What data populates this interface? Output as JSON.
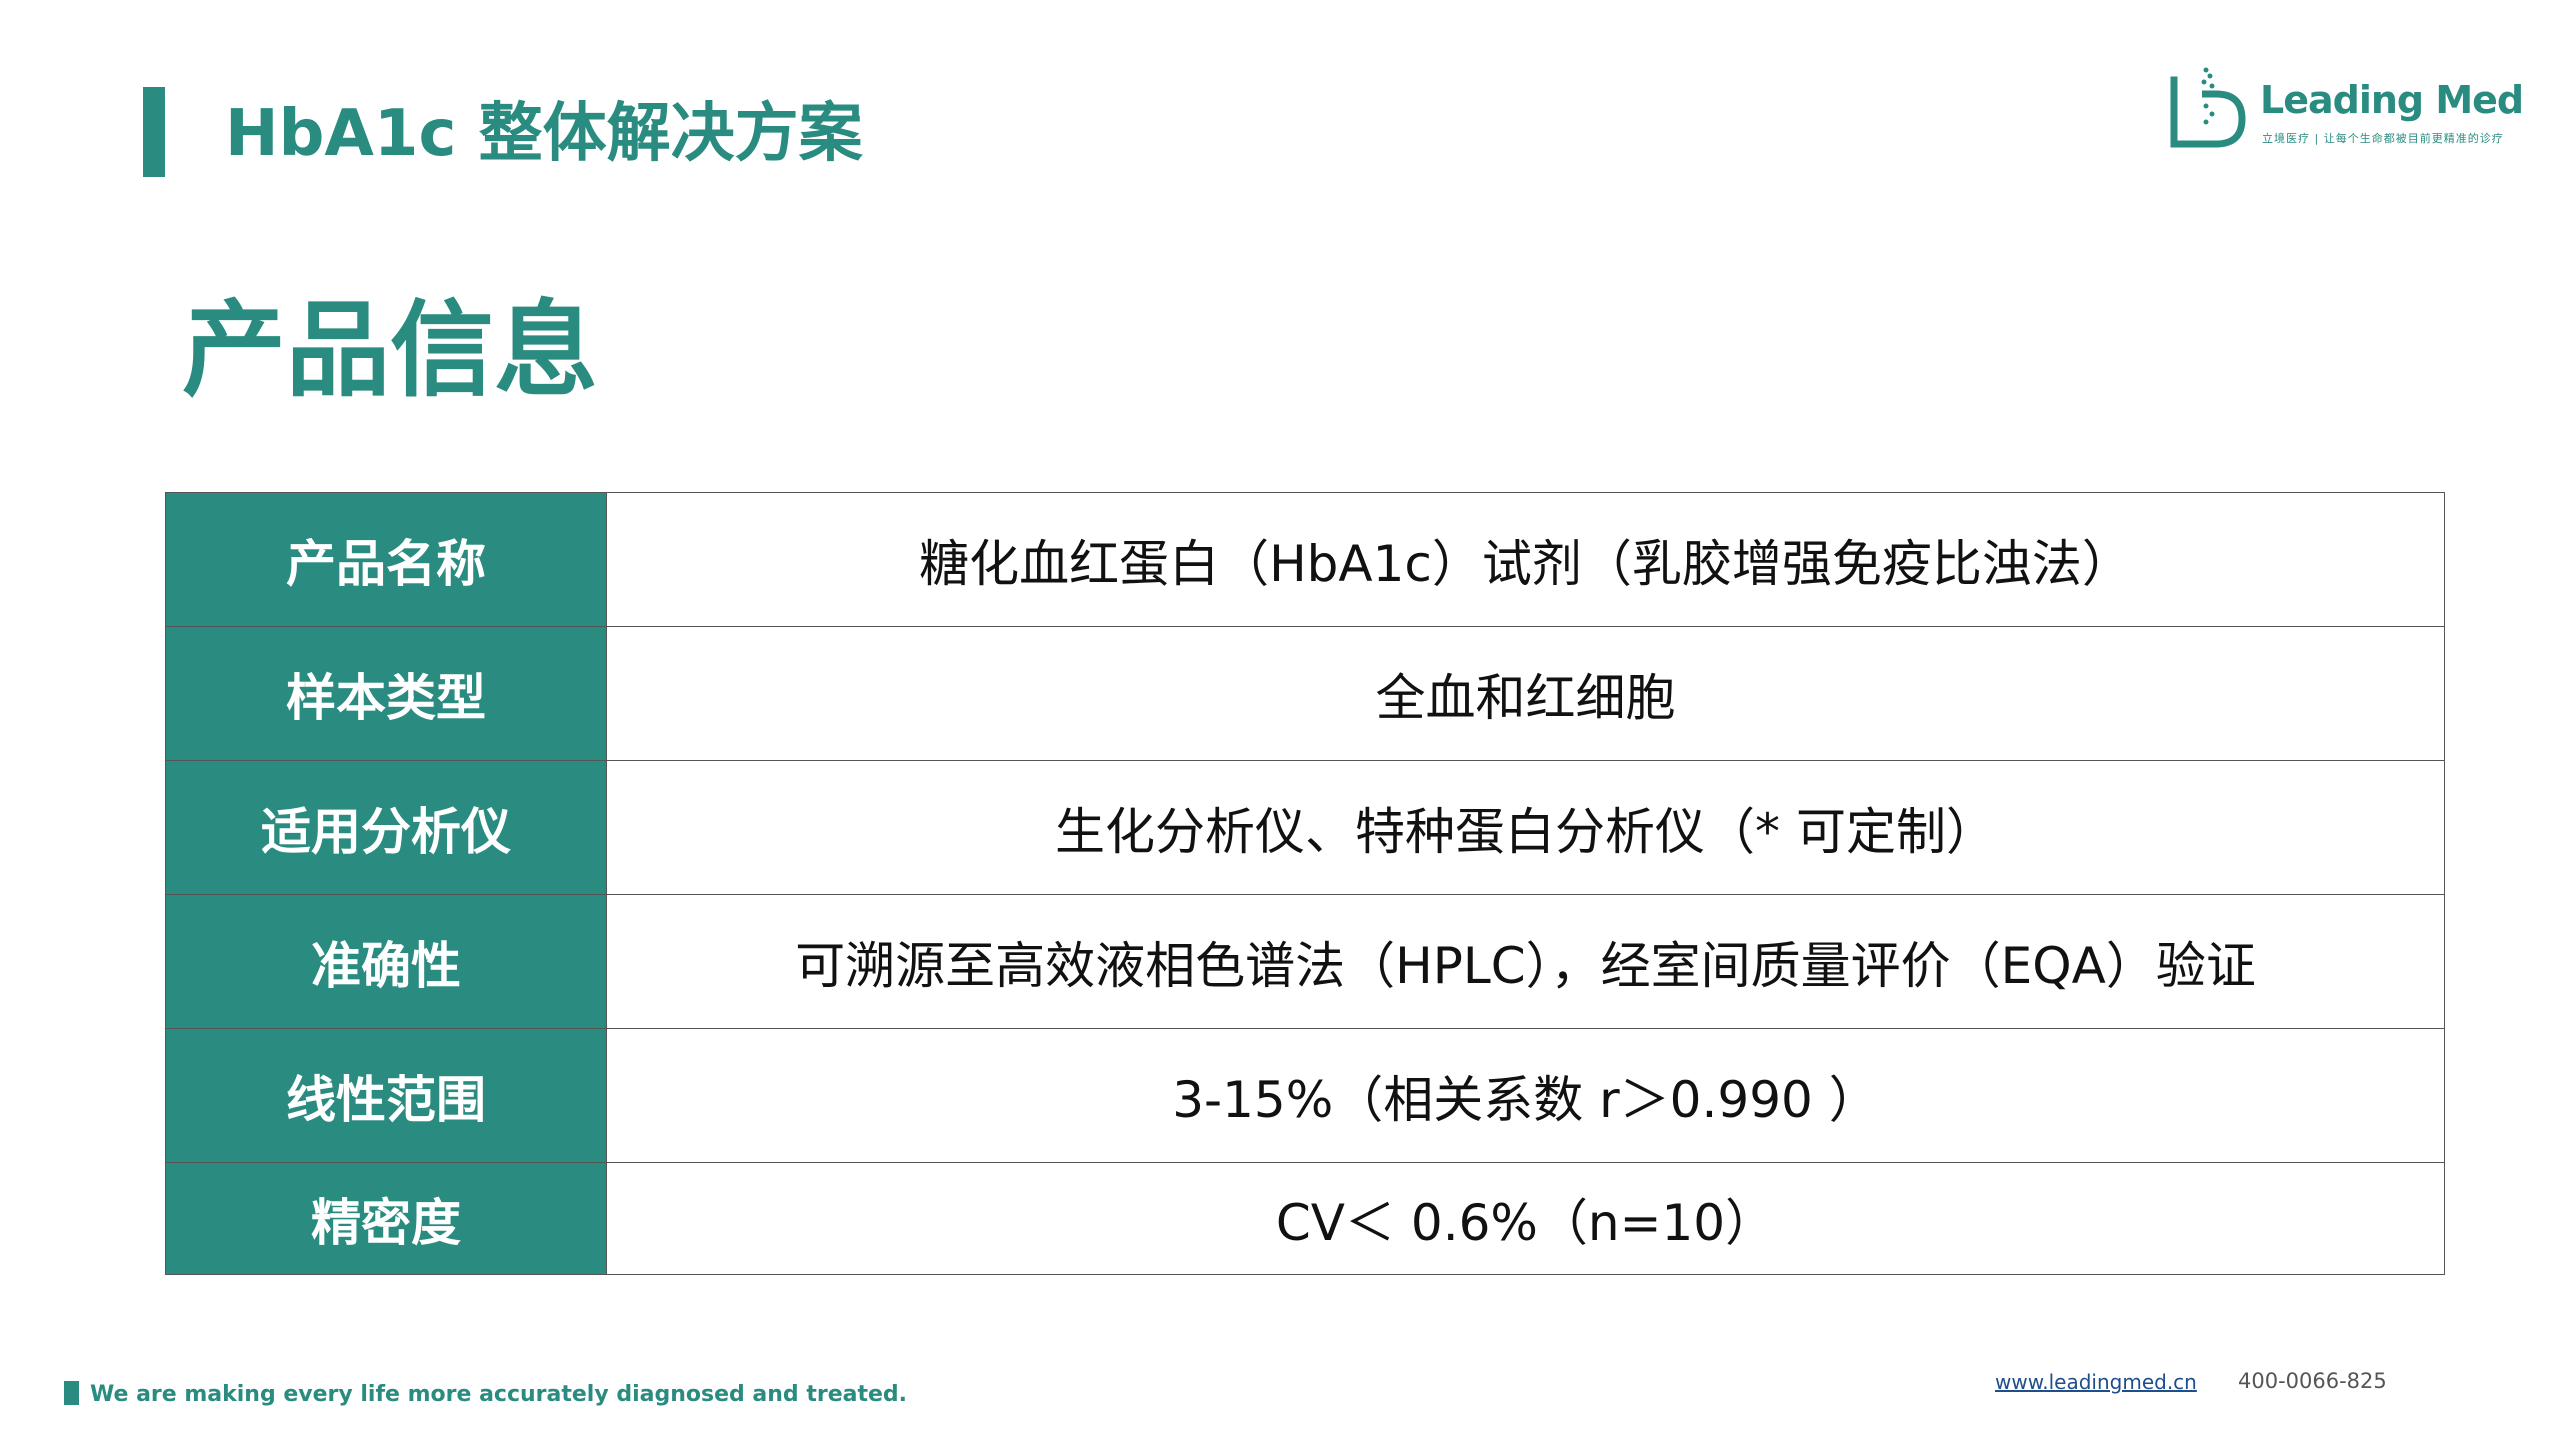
{
  "header": {
    "title": "HbA1c 整体解决方案"
  },
  "logo": {
    "name": "Leading Med",
    "tagline": "立境医疗 | 让每个生命都被目前更精准的诊疗"
  },
  "section": {
    "heading": "产品信息"
  },
  "table": {
    "rows": [
      {
        "label": "产品名称",
        "value": "糖化血红蛋白（HbA1c）试剂（乳胶增强免疫比浊法）"
      },
      {
        "label": "样本类型",
        "value": "全血和红细胞"
      },
      {
        "label": "适用分析仪",
        "value": "生化分析仪、特种蛋白分析仪（* 可定制）"
      },
      {
        "label": "准确性",
        "value": "可溯源至高效液相色谱法（HPLC），经室间质量评价（EQA）验证"
      },
      {
        "label": "线性范围",
        "value": "3-15%（相关系数 r＞0.990 ）"
      },
      {
        "label": "精密度",
        "value": "CV＜ 0.6%（n=10）"
      }
    ]
  },
  "footer": {
    "slogan": "We are making every life more accurately diagnosed and treated.",
    "website": "www.leadingmed.cn",
    "phone": "400-0066-825"
  },
  "colors": {
    "brand_teal": "#2a8c80",
    "link_blue": "#1f4e8c"
  }
}
